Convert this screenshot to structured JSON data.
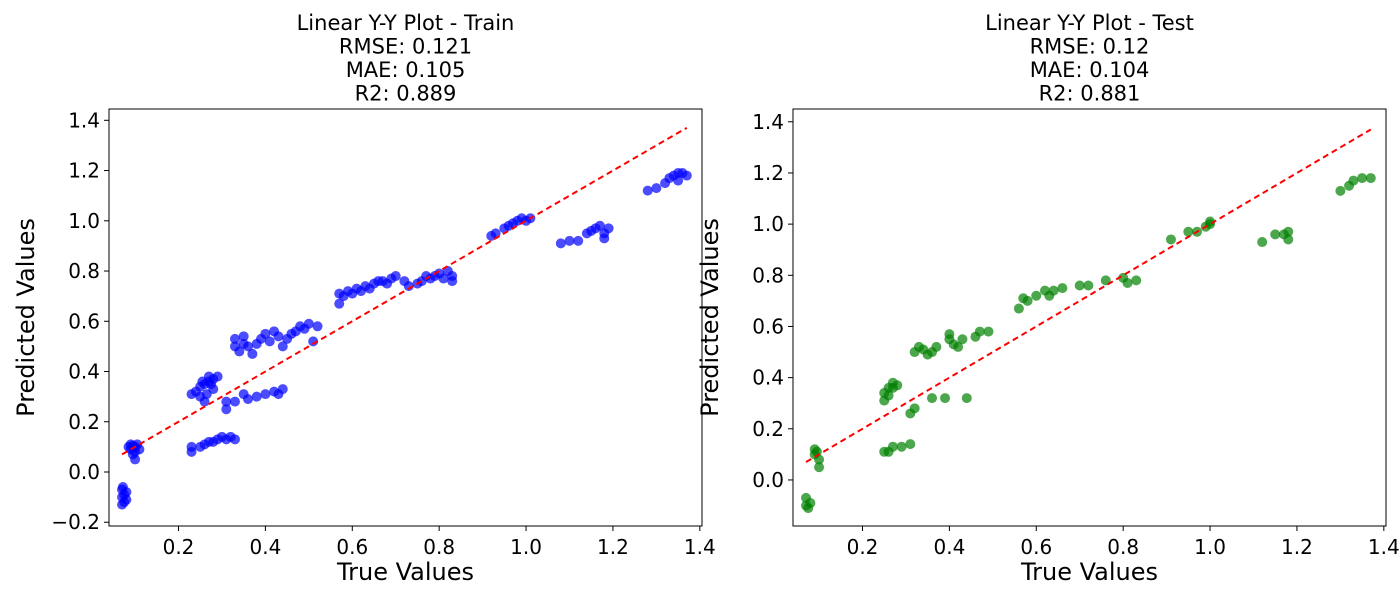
{
  "chart_data": [
    {
      "type": "scatter",
      "title_lines": [
        "Linear Y-Y Plot - Train",
        "RMSE: 0.121",
        "MAE: 0.105",
        "R2: 0.889"
      ],
      "xlabel": "True Values",
      "ylabel": "Predicted Values",
      "xlim": [
        0.04,
        1.405
      ],
      "ylim": [
        -0.215,
        1.445
      ],
      "xticks": [
        0.2,
        0.4,
        0.6,
        0.8,
        1.0,
        1.2,
        1.4
      ],
      "xtick_labels": [
        "0.2",
        "0.4",
        "0.6",
        "0.8",
        "1.0",
        "1.2",
        "1.4"
      ],
      "yticks": [
        -0.2,
        0.0,
        0.2,
        0.4,
        0.6,
        0.8,
        1.0,
        1.2,
        1.4
      ],
      "ytick_labels": [
        "−0.2",
        "0.0",
        "0.2",
        "0.4",
        "0.6",
        "0.8",
        "1.0",
        "1.2",
        "1.4"
      ],
      "point_color": "#0000ff",
      "line_color": "#ff0000",
      "reference_line": {
        "x": [
          0.07,
          1.37
        ],
        "y": [
          0.07,
          1.37
        ]
      },
      "grid": false,
      "points": [
        [
          0.07,
          -0.07
        ],
        [
          0.07,
          -0.1
        ],
        [
          0.07,
          -0.13
        ],
        [
          0.075,
          -0.09
        ],
        [
          0.075,
          -0.12
        ],
        [
          0.08,
          -0.08
        ],
        [
          0.08,
          -0.11
        ],
        [
          0.072,
          -0.06
        ],
        [
          0.09,
          0.09
        ],
        [
          0.09,
          0.11
        ],
        [
          0.095,
          0.07
        ],
        [
          0.1,
          0.1
        ],
        [
          0.1,
          0.08
        ],
        [
          0.105,
          0.11
        ],
        [
          0.1,
          0.05
        ],
        [
          0.11,
          0.09
        ],
        [
          0.085,
          0.1
        ],
        [
          0.095,
          0.105
        ],
        [
          0.23,
          0.31
        ],
        [
          0.24,
          0.32
        ],
        [
          0.25,
          0.3
        ],
        [
          0.25,
          0.34
        ],
        [
          0.26,
          0.35
        ],
        [
          0.26,
          0.28
        ],
        [
          0.27,
          0.36
        ],
        [
          0.27,
          0.38
        ],
        [
          0.28,
          0.37
        ],
        [
          0.28,
          0.33
        ],
        [
          0.29,
          0.38
        ],
        [
          0.265,
          0.31
        ],
        [
          0.255,
          0.36
        ],
        [
          0.275,
          0.35
        ],
        [
          0.23,
          0.08
        ],
        [
          0.23,
          0.1
        ],
        [
          0.25,
          0.1
        ],
        [
          0.26,
          0.11
        ],
        [
          0.27,
          0.12
        ],
        [
          0.28,
          0.12
        ],
        [
          0.29,
          0.13
        ],
        [
          0.3,
          0.14
        ],
        [
          0.31,
          0.13
        ],
        [
          0.32,
          0.14
        ],
        [
          0.33,
          0.13
        ],
        [
          0.31,
          0.25
        ],
        [
          0.31,
          0.28
        ],
        [
          0.33,
          0.28
        ],
        [
          0.35,
          0.31
        ],
        [
          0.36,
          0.29
        ],
        [
          0.38,
          0.3
        ],
        [
          0.4,
          0.31
        ],
        [
          0.42,
          0.32
        ],
        [
          0.43,
          0.31
        ],
        [
          0.44,
          0.33
        ],
        [
          0.33,
          0.5
        ],
        [
          0.33,
          0.53
        ],
        [
          0.34,
          0.48
        ],
        [
          0.35,
          0.51
        ],
        [
          0.35,
          0.54
        ],
        [
          0.36,
          0.5
        ],
        [
          0.37,
          0.47
        ],
        [
          0.38,
          0.51
        ],
        [
          0.39,
          0.53
        ],
        [
          0.4,
          0.55
        ],
        [
          0.41,
          0.52
        ],
        [
          0.42,
          0.56
        ],
        [
          0.43,
          0.54
        ],
        [
          0.44,
          0.5
        ],
        [
          0.45,
          0.53
        ],
        [
          0.46,
          0.55
        ],
        [
          0.47,
          0.56
        ],
        [
          0.48,
          0.58
        ],
        [
          0.49,
          0.57
        ],
        [
          0.5,
          0.59
        ],
        [
          0.51,
          0.52
        ],
        [
          0.52,
          0.58
        ],
        [
          0.57,
          0.67
        ],
        [
          0.57,
          0.71
        ],
        [
          0.58,
          0.7
        ],
        [
          0.59,
          0.72
        ],
        [
          0.6,
          0.71
        ],
        [
          0.61,
          0.73
        ],
        [
          0.62,
          0.72
        ],
        [
          0.63,
          0.74
        ],
        [
          0.64,
          0.73
        ],
        [
          0.65,
          0.75
        ],
        [
          0.66,
          0.76
        ],
        [
          0.67,
          0.76
        ],
        [
          0.68,
          0.75
        ],
        [
          0.69,
          0.77
        ],
        [
          0.7,
          0.78
        ],
        [
          0.72,
          0.76
        ],
        [
          0.73,
          0.74
        ],
        [
          0.75,
          0.75
        ],
        [
          0.76,
          0.76
        ],
        [
          0.77,
          0.78
        ],
        [
          0.78,
          0.77
        ],
        [
          0.79,
          0.78
        ],
        [
          0.8,
          0.79
        ],
        [
          0.81,
          0.77
        ],
        [
          0.82,
          0.8
        ],
        [
          0.83,
          0.78
        ],
        [
          0.83,
          0.76
        ],
        [
          0.92,
          0.94
        ],
        [
          0.93,
          0.95
        ],
        [
          0.95,
          0.97
        ],
        [
          0.96,
          0.98
        ],
        [
          0.97,
          0.99
        ],
        [
          0.98,
          1.0
        ],
        [
          0.99,
          1.01
        ],
        [
          1.0,
          1.0
        ],
        [
          1.01,
          1.01
        ],
        [
          1.08,
          0.91
        ],
        [
          1.1,
          0.92
        ],
        [
          1.12,
          0.92
        ],
        [
          1.14,
          0.95
        ],
        [
          1.15,
          0.96
        ],
        [
          1.16,
          0.97
        ],
        [
          1.17,
          0.98
        ],
        [
          1.18,
          0.95
        ],
        [
          1.19,
          0.97
        ],
        [
          1.18,
          0.93
        ],
        [
          1.28,
          1.12
        ],
        [
          1.3,
          1.13
        ],
        [
          1.32,
          1.15
        ],
        [
          1.33,
          1.17
        ],
        [
          1.34,
          1.18
        ],
        [
          1.35,
          1.16
        ],
        [
          1.36,
          1.19
        ],
        [
          1.37,
          1.18
        ],
        [
          1.35,
          1.19
        ]
      ]
    },
    {
      "type": "scatter",
      "title_lines": [
        "Linear Y-Y Plot - Test",
        "RMSE: 0.12",
        "MAE: 0.104",
        "R2: 0.881"
      ],
      "xlabel": "True Values",
      "ylabel": "Predicted Values",
      "xlim": [
        0.04,
        1.405
      ],
      "ylim": [
        -0.18,
        1.45
      ],
      "xticks": [
        0.2,
        0.4,
        0.6,
        0.8,
        1.0,
        1.2,
        1.4
      ],
      "xtick_labels": [
        "0.2",
        "0.4",
        "0.6",
        "0.8",
        "1.0",
        "1.2",
        "1.4"
      ],
      "yticks": [
        0.0,
        0.2,
        0.4,
        0.6,
        0.8,
        1.0,
        1.2,
        1.4
      ],
      "ytick_labels": [
        "0.0",
        "0.2",
        "0.4",
        "0.6",
        "0.8",
        "1.0",
        "1.2",
        "1.4"
      ],
      "point_color": "#008000",
      "line_color": "#ff0000",
      "reference_line": {
        "x": [
          0.07,
          1.37
        ],
        "y": [
          0.07,
          1.37
        ]
      },
      "grid": false,
      "points": [
        [
          0.07,
          -0.07
        ],
        [
          0.07,
          -0.1
        ],
        [
          0.08,
          -0.09
        ],
        [
          0.075,
          -0.11
        ],
        [
          0.09,
          0.1
        ],
        [
          0.09,
          0.12
        ],
        [
          0.1,
          0.08
        ],
        [
          0.1,
          0.05
        ],
        [
          0.095,
          0.11
        ],
        [
          0.25,
          0.31
        ],
        [
          0.25,
          0.34
        ],
        [
          0.26,
          0.36
        ],
        [
          0.27,
          0.38
        ],
        [
          0.27,
          0.36
        ],
        [
          0.28,
          0.37
        ],
        [
          0.26,
          0.33
        ],
        [
          0.25,
          0.11
        ],
        [
          0.26,
          0.11
        ],
        [
          0.27,
          0.13
        ],
        [
          0.29,
          0.13
        ],
        [
          0.31,
          0.14
        ],
        [
          0.31,
          0.26
        ],
        [
          0.32,
          0.28
        ],
        [
          0.36,
          0.32
        ],
        [
          0.39,
          0.32
        ],
        [
          0.44,
          0.32
        ],
        [
          0.32,
          0.5
        ],
        [
          0.33,
          0.52
        ],
        [
          0.34,
          0.51
        ],
        [
          0.35,
          0.49
        ],
        [
          0.36,
          0.5
        ],
        [
          0.37,
          0.52
        ],
        [
          0.4,
          0.55
        ],
        [
          0.4,
          0.57
        ],
        [
          0.41,
          0.53
        ],
        [
          0.42,
          0.52
        ],
        [
          0.43,
          0.55
        ],
        [
          0.46,
          0.56
        ],
        [
          0.47,
          0.58
        ],
        [
          0.49,
          0.58
        ],
        [
          0.56,
          0.67
        ],
        [
          0.57,
          0.71
        ],
        [
          0.58,
          0.7
        ],
        [
          0.6,
          0.72
        ],
        [
          0.62,
          0.74
        ],
        [
          0.63,
          0.72
        ],
        [
          0.64,
          0.74
        ],
        [
          0.66,
          0.75
        ],
        [
          0.7,
          0.76
        ],
        [
          0.72,
          0.76
        ],
        [
          0.76,
          0.78
        ],
        [
          0.8,
          0.79
        ],
        [
          0.81,
          0.77
        ],
        [
          0.83,
          0.78
        ],
        [
          0.91,
          0.94
        ],
        [
          0.95,
          0.97
        ],
        [
          0.97,
          0.97
        ],
        [
          0.99,
          0.99
        ],
        [
          1.0,
          1.0
        ],
        [
          1.0,
          1.01
        ],
        [
          1.12,
          0.93
        ],
        [
          1.15,
          0.96
        ],
        [
          1.17,
          0.96
        ],
        [
          1.18,
          0.97
        ],
        [
          1.18,
          0.94
        ],
        [
          1.3,
          1.13
        ],
        [
          1.32,
          1.15
        ],
        [
          1.33,
          1.17
        ],
        [
          1.35,
          1.18
        ],
        [
          1.37,
          1.18
        ]
      ]
    }
  ]
}
